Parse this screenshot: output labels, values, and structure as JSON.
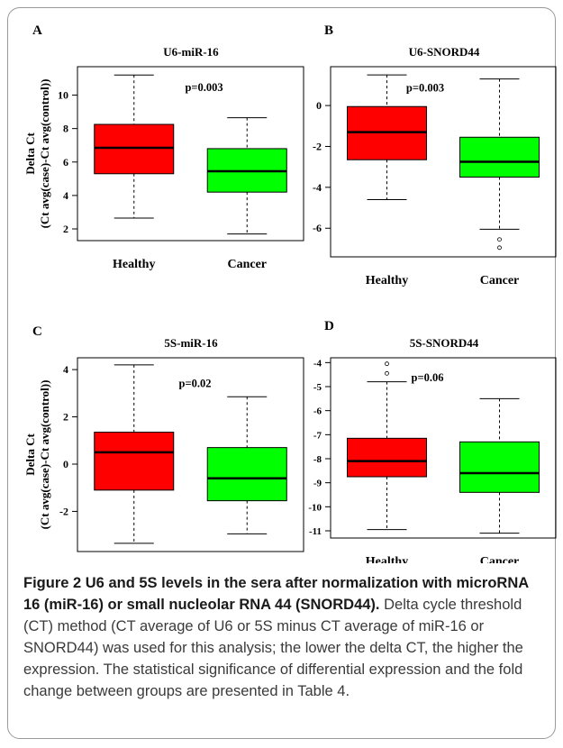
{
  "chart_data": [
    {
      "type": "boxplot",
      "panel_label": "A",
      "title": "U6-miR-16",
      "ylabel_line1": "Delta Ct",
      "ylabel_line2": "(Ct avg(case)-Ct avg(control))",
      "categories": [
        "Healthy",
        "Cancer"
      ],
      "yticks": [
        2,
        4,
        6,
        8,
        10
      ],
      "ylim": [
        1.3,
        11.7
      ],
      "annotation": "p=0.003",
      "boxes": [
        {
          "name": "Healthy",
          "color": "#ff0000",
          "min": 2.65,
          "q1": 5.3,
          "median": 6.85,
          "q3": 8.25,
          "max": 11.2,
          "outliers": []
        },
        {
          "name": "Cancer",
          "color": "#00ff00",
          "min": 1.7,
          "q1": 4.2,
          "median": 5.45,
          "q3": 6.8,
          "max": 8.65,
          "outliers": []
        }
      ]
    },
    {
      "type": "boxplot",
      "panel_label": "B",
      "title": "U6-SNORD44",
      "categories": [
        "Healthy",
        "Cancer"
      ],
      "yticks": [
        0,
        -2,
        -4,
        -6
      ],
      "ylim": [
        -7.4,
        1.9
      ],
      "annotation": "p=0.003",
      "boxes": [
        {
          "name": "Healthy",
          "color": "#ff0000",
          "min": -4.6,
          "q1": -2.65,
          "median": -1.3,
          "q3": -0.05,
          "max": 1.5,
          "outliers": []
        },
        {
          "name": "Cancer",
          "color": "#00ff00",
          "min": -6.05,
          "q1": -3.5,
          "median": -2.75,
          "q3": -1.55,
          "max": 1.3,
          "outliers": [
            -6.55,
            -6.95
          ]
        }
      ]
    },
    {
      "type": "boxplot",
      "panel_label": "C",
      "title": "5S-miR-16",
      "ylabel_line1": "Delta Ct",
      "ylabel_line2": "(Ct avg(case)-Ct avg(control))",
      "categories": [
        "Healthy",
        "Cancer"
      ],
      "yticks": [
        4,
        2,
        0,
        -2
      ],
      "ylim": [
        -3.7,
        4.5
      ],
      "annotation": "p=0.02",
      "boxes": [
        {
          "name": "Healthy",
          "color": "#ff0000",
          "min": -3.35,
          "q1": -1.1,
          "median": 0.5,
          "q3": 1.35,
          "max": 4.2,
          "outliers": []
        },
        {
          "name": "Cancer",
          "color": "#00ff00",
          "min": -2.95,
          "q1": -1.55,
          "median": -0.6,
          "q3": 0.7,
          "max": 2.85,
          "outliers": []
        }
      ]
    },
    {
      "type": "boxplot",
      "panel_label": "D",
      "title": "5S-SNORD44",
      "categories": [
        "Healthy",
        "Cancer"
      ],
      "yticks": [
        -4,
        -5,
        -6,
        -7,
        -8,
        -9,
        -10,
        -11
      ],
      "ylim": [
        -11.3,
        -3.8
      ],
      "annotation": "p=0.06",
      "boxes": [
        {
          "name": "Healthy",
          "color": "#ff0000",
          "min": -10.95,
          "q1": -8.75,
          "median": -8.1,
          "q3": -7.15,
          "max": -4.8,
          "outliers": [
            -4.05,
            -4.45
          ]
        },
        {
          "name": "Cancer",
          "color": "#00ff00",
          "min": -11.1,
          "q1": -9.4,
          "median": -8.6,
          "q3": -7.3,
          "max": -5.5,
          "outliers": []
        }
      ]
    }
  ],
  "caption": {
    "title": "Figure 2 U6 and 5S levels in the sera after normalization with microRNA 16 (miR-16) or small nucleolar RNA 44 (SNORD44)",
    "title_end": ".",
    "body": " Delta cycle threshold (CT) method (CT average of U6 or 5S minus CT average of miR-16 or SNORD44) was used for this analysis; the lower the delta CT, the higher the expression. The statistical significance of differential expression and the fold change between groups are presented in Table 4."
  }
}
